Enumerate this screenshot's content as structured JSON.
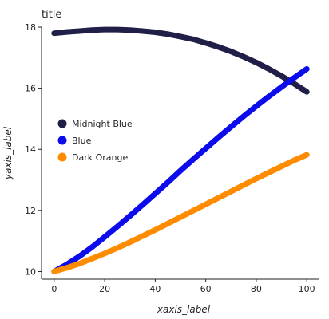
{
  "chart_data": {
    "type": "area",
    "title": "title",
    "xlabel": "xaxis_label",
    "ylabel": "yaxis_label",
    "xlim": [
      -5,
      105
    ],
    "ylim": [
      9.75,
      18
    ],
    "x_ticks": [
      0,
      20,
      40,
      60,
      80,
      100
    ],
    "y_ticks": [
      10,
      12,
      14,
      16,
      18
    ],
    "grid": false,
    "legend_position": "left",
    "x": [
      0,
      5,
      10,
      15,
      20,
      25,
      30,
      35,
      40,
      45,
      50,
      55,
      60,
      65,
      70,
      75,
      80,
      85,
      90,
      95,
      100
    ],
    "series": [
      {
        "name": "Midnight Blue",
        "color": "#1f1f47",
        "values": [
          17.8,
          17.84,
          17.87,
          17.9,
          17.92,
          17.92,
          17.9,
          17.87,
          17.83,
          17.77,
          17.69,
          17.6,
          17.48,
          17.35,
          17.2,
          17.03,
          16.84,
          16.63,
          16.4,
          16.15,
          15.88
        ]
      },
      {
        "name": "Blue",
        "color": "#0b0bec",
        "values": [
          10.0,
          10.23,
          10.5,
          10.8,
          11.13,
          11.47,
          11.82,
          12.18,
          12.55,
          12.92,
          13.3,
          13.67,
          14.03,
          14.39,
          14.74,
          15.08,
          15.41,
          15.73,
          16.04,
          16.34,
          16.63
        ]
      },
      {
        "name": "Dark Orange",
        "color": "#ff8c00",
        "values": [
          10.0,
          10.12,
          10.26,
          10.42,
          10.59,
          10.77,
          10.96,
          11.16,
          11.36,
          11.57,
          11.78,
          11.99,
          12.2,
          12.41,
          12.62,
          12.83,
          13.04,
          13.24,
          13.44,
          13.64,
          13.82
        ]
      }
    ]
  }
}
